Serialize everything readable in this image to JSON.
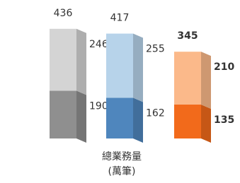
{
  "chart_data": {
    "type": "stacked-bar-3d",
    "totals": [
      436,
      417,
      345
    ],
    "series": [
      {
        "values": [
          190,
          162,
          135
        ],
        "colors": [
          "#8f8f8f",
          "#4f86bd",
          "#f26a1b"
        ]
      },
      {
        "values": [
          246,
          255,
          210
        ],
        "colors": [
          "#d4d4d4",
          "#b7d3ea",
          "#fbb98a"
        ]
      }
    ],
    "label_colors": [
      "#333333",
      "#333333",
      "#f26a1b"
    ],
    "label_bold": [
      false,
      false,
      true
    ],
    "x_label": "總業務量",
    "x_unit": "(萬筆)"
  }
}
